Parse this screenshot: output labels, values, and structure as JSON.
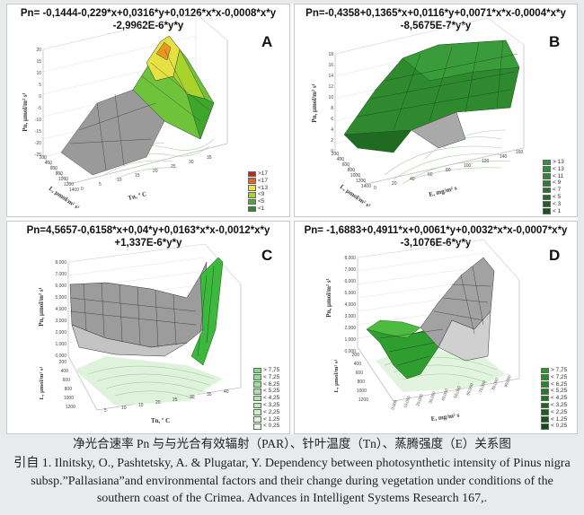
{
  "panels": [
    {
      "id": "A",
      "equation_line1": "Pn= -0,1444-0,229*x+0,0316*y+0,0126*x*x-0,0008*x*y",
      "equation_line2": "-2,9962E-6*y*y",
      "z_axis_label": "Pn, μmol/m² s¹",
      "x_axis_label": "L, μmol/m² s¹",
      "y_axis_label": "Tn, º C",
      "x_ticks": [
        "200",
        "400",
        "600",
        "800",
        "1000",
        "1200",
        "1400"
      ],
      "y_ticks": [
        "0",
        "5",
        "10",
        "15",
        "20",
        "25",
        "30",
        "35"
      ],
      "z_ticks": [
        "20",
        "15",
        "10",
        "5",
        "0",
        "-5",
        "-10",
        "-15",
        "-20",
        "-25"
      ],
      "legend": [
        ">17",
        "<17",
        "<13",
        "<9",
        "<5",
        "<1"
      ],
      "legend_colors": [
        "#c0281c",
        "#e8641a",
        "#f2e338",
        "#a6d81e",
        "#48b030",
        "#2a8c2a"
      ]
    },
    {
      "id": "B",
      "equation_line1": "Pn=-0,4358+0,1365*x+0,0116*y+0,0071*x*x-0,0004*x*y",
      "equation_line2": "-8,5675E-7*y*y",
      "z_axis_label": "Pn, μmol/m² s¹",
      "x_axis_label": "L, μmol/m² s¹",
      "y_axis_label": "E, mg/m² s",
      "x_ticks": [
        "200",
        "400",
        "600",
        "800",
        "1000",
        "1200",
        "1400"
      ],
      "y_ticks": [
        "0",
        "20",
        "40",
        "60",
        "80",
        "100",
        "120",
        "140",
        "160"
      ],
      "z_ticks": [
        "18",
        "16",
        "14",
        "12",
        "10",
        "8",
        "6",
        "4",
        "2",
        "0"
      ],
      "legend": [
        "> 13",
        "< 13",
        "< 11",
        "< 9",
        "< 7",
        "< 5",
        "< 3",
        "< 1"
      ],
      "legend_colors": [
        "#2a9a38",
        "#2c9237",
        "#2a8935",
        "#288032",
        "#25772f",
        "#216d2b",
        "#1c6127",
        "#165422"
      ]
    },
    {
      "id": "C",
      "equation_line1": "Pn=4,5657-0,6158*x+0,04*y+0,0163*x*x-0,0012*x*y",
      "equation_line2": "+1,337E-6*y*y",
      "z_axis_label": "Pn, μmol/m² s¹",
      "x_axis_label": "Tn, º C",
      "y_axis_label": "L, μmol/m² s¹",
      "x_ticks": [
        "5",
        "10",
        "15",
        "20",
        "25",
        "30",
        "35",
        "40"
      ],
      "y_ticks": [
        "1200",
        "1000",
        "800",
        "600",
        "400",
        "200"
      ],
      "z_ticks": [
        "8,000",
        "7,000",
        "6,000",
        "5,000",
        "4,000",
        "3,000",
        "2,000",
        "1,000",
        "0,000"
      ],
      "legend": [
        "> 7,75",
        "< 7,25",
        "< 6,25",
        "< 5,25",
        "< 4,25",
        "< 3,25",
        "< 2,25",
        "< 1,25",
        "< 0,25"
      ],
      "legend_colors": [
        "#7ee07a",
        "#88e383",
        "#93e68d",
        "#a0e99a",
        "#adeca7",
        "#bbefb5",
        "#c9f2c4",
        "#d8f6d4",
        "#e7f9e4"
      ]
    },
    {
      "id": "D",
      "equation_line1": "Pn= -1,6883+0,4911*x+0,0061*y+0,0032*x*x-0,0007*x*y",
      "equation_line2": "-3,1076E-6*y*y",
      "z_axis_label": "Pn, μmol/m² s¹",
      "x_axis_label": "E, mg/m² s",
      "y_axis_label": "L, μmol/m² s¹",
      "x_ticks": [
        "0,000",
        "10,000",
        "20,000",
        "30,000",
        "40,000",
        "50,000",
        "60,000",
        "70,000",
        "80,000",
        "90,000"
      ],
      "y_ticks": [
        "1200",
        "1000",
        "800",
        "600",
        "400",
        "200"
      ],
      "z_ticks": [
        "8,000",
        "7,000",
        "6,000",
        "5,000",
        "4,000",
        "3,000",
        "2,000",
        "1,000",
        "0,000"
      ],
      "legend": [
        "> 7,75",
        "< 7,25",
        "< 6,25",
        "< 5,25",
        "< 4,25",
        "< 3,25",
        "< 2,25",
        "< 1,25",
        "< 0,25"
      ],
      "legend_colors": [
        "#1fa01f",
        "#1e961e",
        "#1c8c1c",
        "#1a821a",
        "#187818",
        "#166e16",
        "#146414",
        "#125a12",
        "#0f500f"
      ]
    }
  ],
  "caption": {
    "title_zh": "净光合速率 Pn 与与光合有效辐射（PAR）、针叶温度（Tn）、蒸腾强度（E）关系图",
    "citation_line1": "引自 1. Ilnitsky, O., Pashtetsky, A. & Plugatar, Y. Dependency between photosynthetic intensity of Pinus nigra",
    "citation_line2": "subsp.”Pallasiana”and environmental factors and their change during vegetation under conditions of the",
    "citation_line3": "southern coast of the Crimea. Advances in Intelligent Systems Research 167,."
  }
}
